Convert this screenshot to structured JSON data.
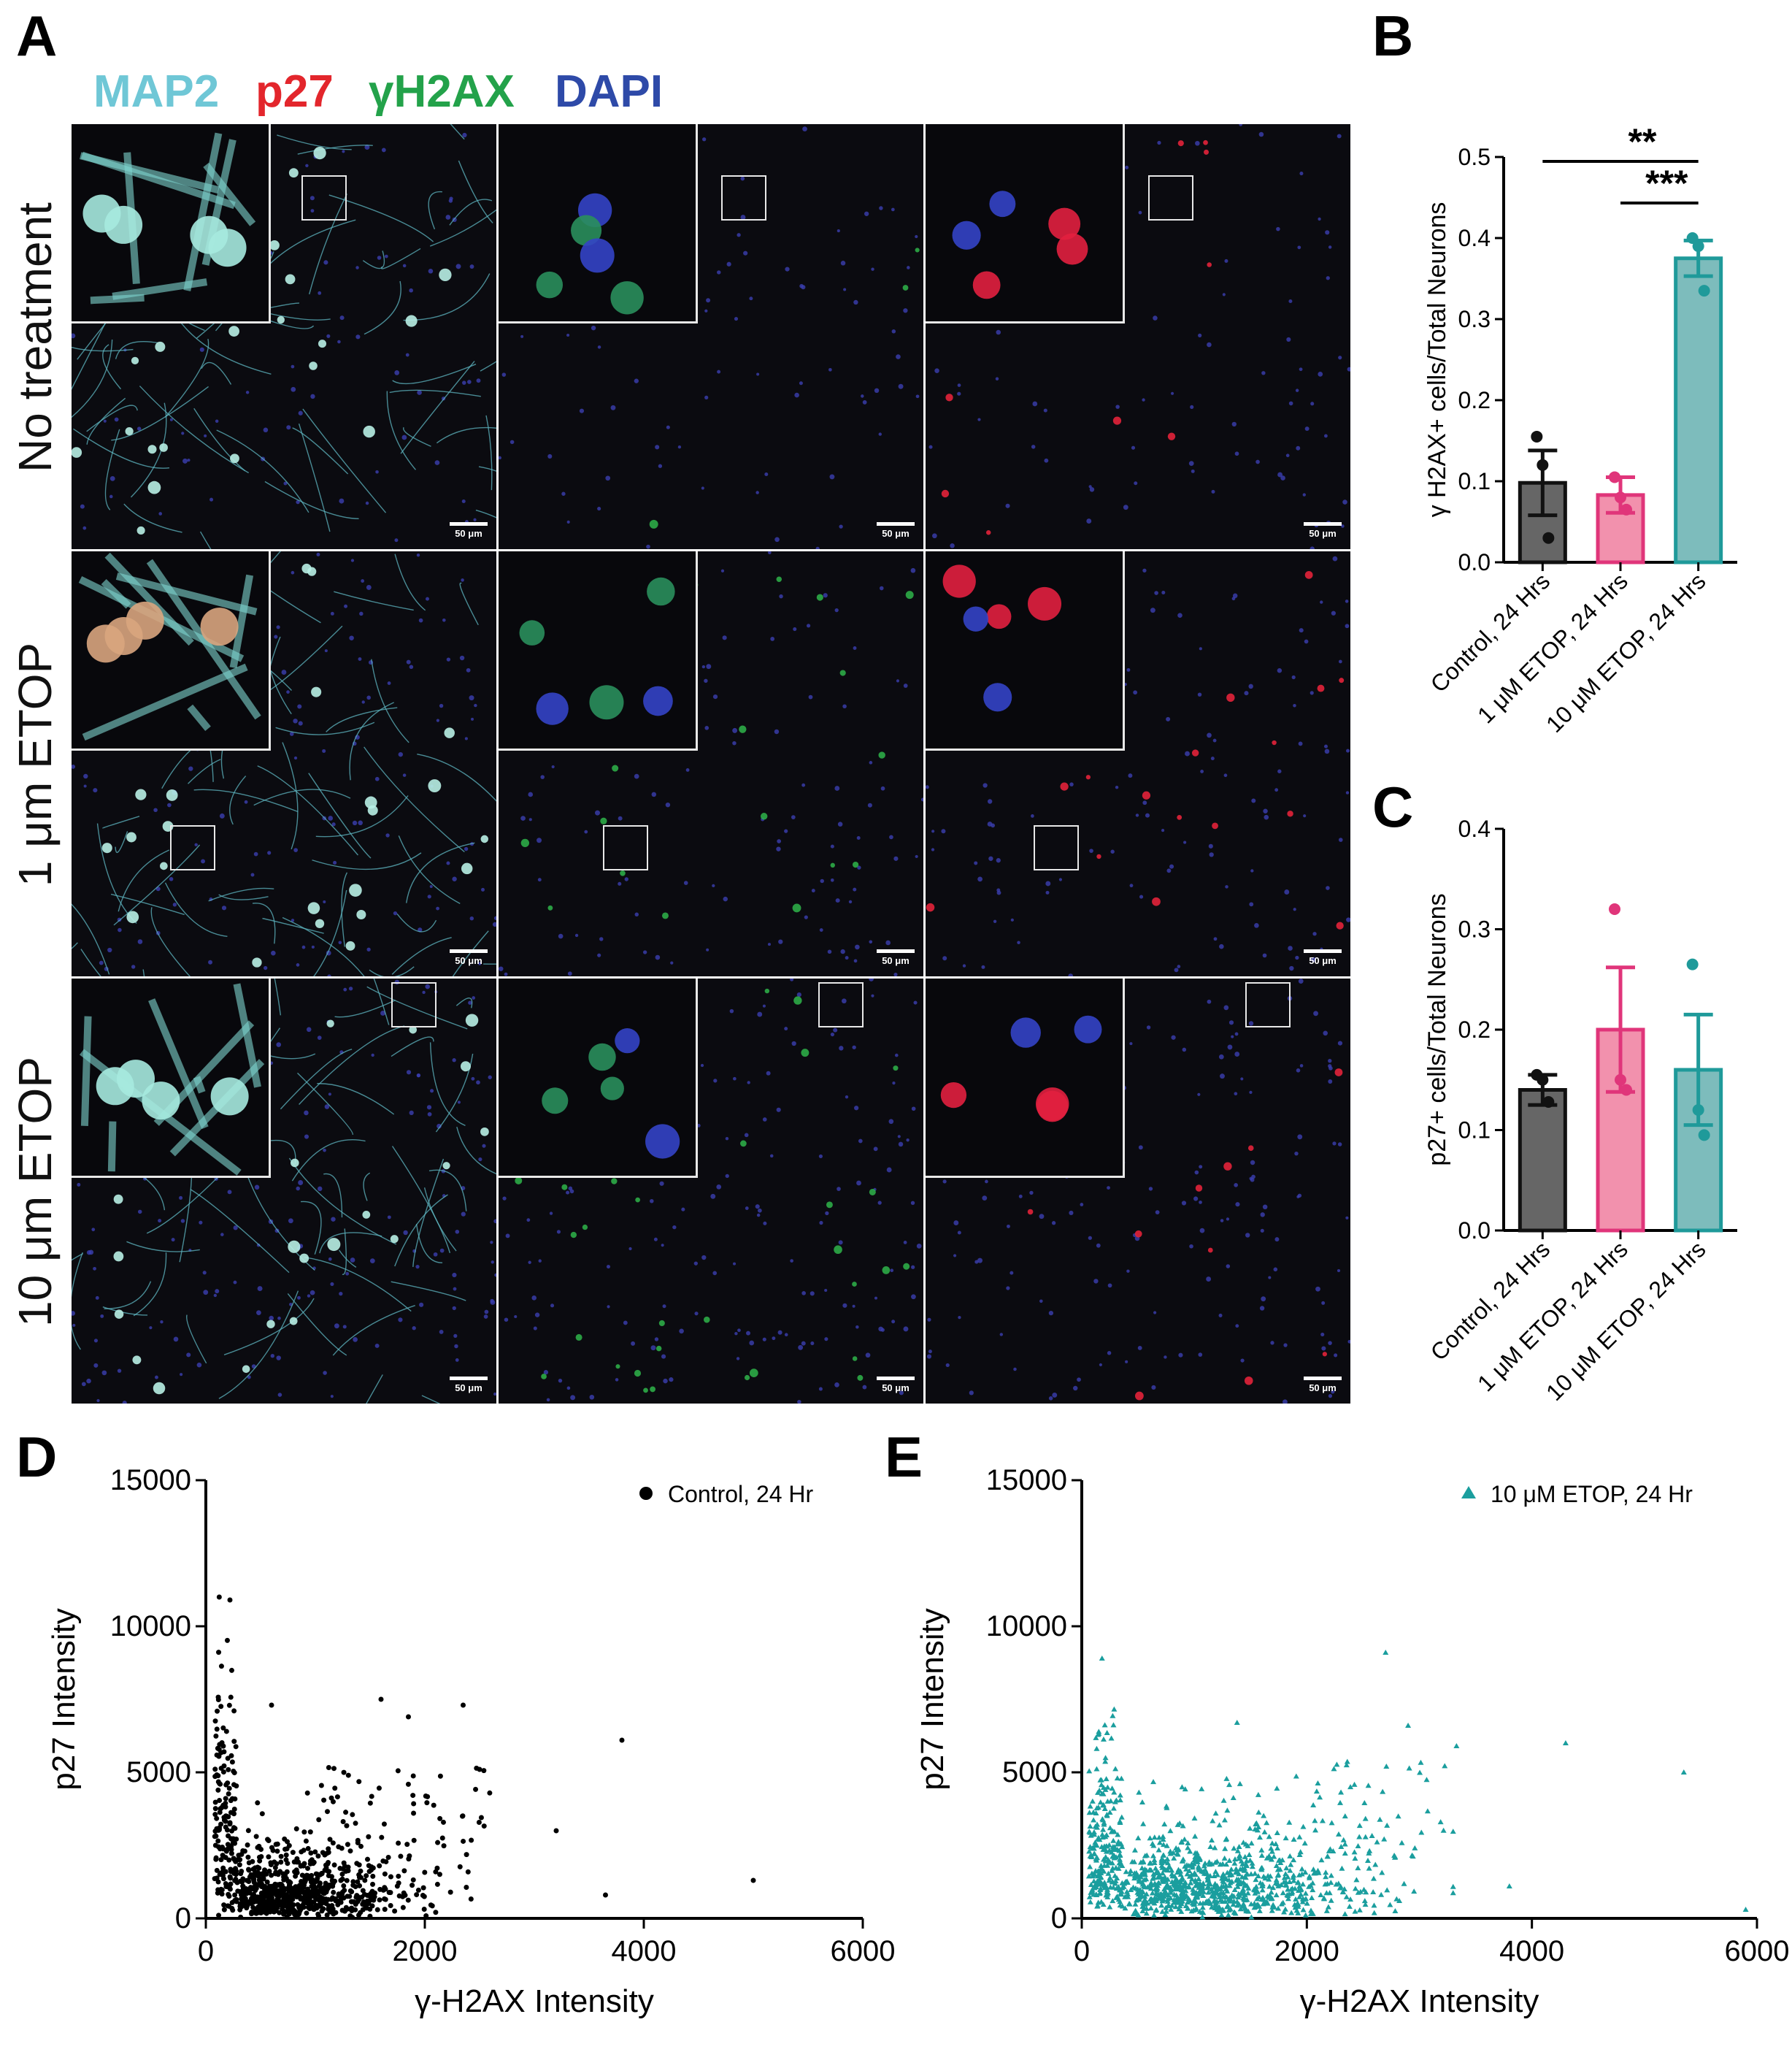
{
  "panels": {
    "a": "A",
    "b": "B",
    "c": "C",
    "d": "D",
    "e": "E"
  },
  "channels": [
    {
      "label": "MAP2",
      "color": "#6fc7d6"
    },
    {
      "label": "p27",
      "color": "#e3262c"
    },
    {
      "label": "γH2AX",
      "color": "#23a24a"
    },
    {
      "label": "DAPI",
      "color": "#2e4aa8"
    }
  ],
  "rows": [
    "No treatment",
    "1 μm ETOP",
    "10 μm ETOP"
  ],
  "scalebar": "50 μm",
  "chart_data": [
    {
      "id": "B",
      "type": "bar",
      "categories": [
        "Control, 24 Hrs",
        "1 μM ETOP, 24 Hrs",
        "10 μM ETOP, 24 Hrs"
      ],
      "values": [
        0.098,
        0.083,
        0.375
      ],
      "sem": [
        0.04,
        0.022,
        0.022
      ],
      "points": [
        [
          0.155,
          0.12,
          0.03
        ],
        [
          0.105,
          0.08,
          0.065
        ],
        [
          0.4,
          0.39,
          0.335
        ]
      ],
      "ylabel": "γ H2AX+ cells/Total Neurons",
      "ylim": [
        0,
        0.5
      ],
      "yticks": [
        "0.0",
        "0.1",
        "0.2",
        "0.3",
        "0.4",
        "0.5"
      ],
      "significance": [
        "**",
        "***"
      ],
      "colors": {
        "fill": [
          "#666666",
          "#f291ad",
          "#7dbcbc"
        ],
        "edge": [
          "#111111",
          "#e0357a",
          "#1f9a9a"
        ]
      }
    },
    {
      "id": "C",
      "type": "bar",
      "categories": [
        "Control, 24 Hrs",
        "1 μM ETOP, 24 Hrs",
        "10 μM ETOP, 24 Hrs"
      ],
      "values": [
        0.14,
        0.2,
        0.16
      ],
      "sem": [
        0.015,
        0.062,
        0.055
      ],
      "points": [
        [
          0.155,
          0.15,
          0.128
        ],
        [
          0.32,
          0.15,
          0.14
        ],
        [
          0.265,
          0.12,
          0.095
        ]
      ],
      "ylabel": "p27+ cells/Total Neurons",
      "ylim": [
        0,
        0.4
      ],
      "yticks": [
        "0.0",
        "0.1",
        "0.2",
        "0.3",
        "0.4"
      ],
      "colors": {
        "fill": [
          "#666666",
          "#f291ad",
          "#7dbcbc"
        ],
        "edge": [
          "#111111",
          "#e0357a",
          "#1f9a9a"
        ]
      }
    },
    {
      "id": "D",
      "type": "scatter",
      "series": [
        {
          "name": "Control, 24 Hr",
          "marker": "circle",
          "color": "#000000"
        }
      ],
      "xlabel": "γ-H2AX Intensity",
      "ylabel": "p27 Intensity",
      "xlim": [
        0,
        6000
      ],
      "ylim": [
        0,
        15000
      ],
      "xticks": [
        "0",
        "2000",
        "4000",
        "6000"
      ],
      "yticks": [
        "0",
        "5000",
        "10000",
        "15000"
      ],
      "outliers": [
        [
          3800,
          6100
        ],
        [
          5000,
          1300
        ],
        [
          3650,
          800
        ],
        [
          3200,
          3000
        ],
        [
          2350,
          7300
        ],
        [
          1600,
          7500
        ],
        [
          1850,
          6900
        ],
        [
          600,
          7300
        ],
        [
          220,
          10900
        ],
        [
          2500,
          5100
        ]
      ]
    },
    {
      "id": "E",
      "type": "scatter",
      "series": [
        {
          "name": "10 μM ETOP, 24 Hr",
          "marker": "triangle",
          "color": "#1a9e9e"
        }
      ],
      "xlabel": "γ-H2AX Intensity",
      "ylabel": "p27 Intensity",
      "xlim": [
        0,
        6000
      ],
      "ylim": [
        0,
        15000
      ],
      "xticks": [
        "0",
        "2000",
        "4000",
        "6000"
      ],
      "yticks": [
        "0",
        "5000",
        "10000",
        "15000"
      ],
      "outliers": [
        [
          2700,
          9100
        ],
        [
          4300,
          6000
        ],
        [
          5350,
          5000
        ],
        [
          5900,
          300
        ],
        [
          3330,
          5900
        ],
        [
          2900,
          6600
        ],
        [
          180,
          8900
        ],
        [
          1380,
          6700
        ],
        [
          3800,
          1100
        ]
      ]
    }
  ]
}
